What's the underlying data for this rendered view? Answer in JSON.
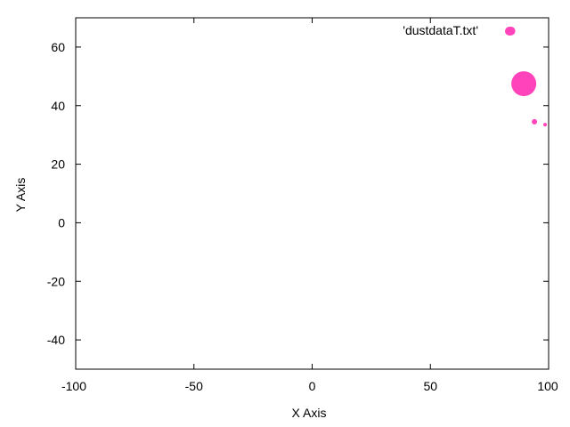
{
  "chart_data": {
    "type": "scatter",
    "title": "",
    "xlabel": "X Axis",
    "ylabel": "Y Axis",
    "xlim": [
      -100,
      100
    ],
    "ylim": [
      -50,
      70
    ],
    "xticks": [
      -100,
      -50,
      0,
      50,
      100
    ],
    "yticks": [
      -40,
      -20,
      0,
      20,
      40,
      60
    ],
    "grid": false,
    "legend_position": "top-right",
    "series": [
      {
        "name": "'dustdataT.txt'",
        "color": "#ff44bb",
        "points": [
          {
            "x": 84,
            "y": 65.5,
            "size": 5
          },
          {
            "x": 89.5,
            "y": 47.5,
            "size": 14
          },
          {
            "x": 94,
            "y": 34.5,
            "size": 3
          },
          {
            "x": 98.5,
            "y": 33.5,
            "size": 2
          }
        ]
      }
    ]
  }
}
